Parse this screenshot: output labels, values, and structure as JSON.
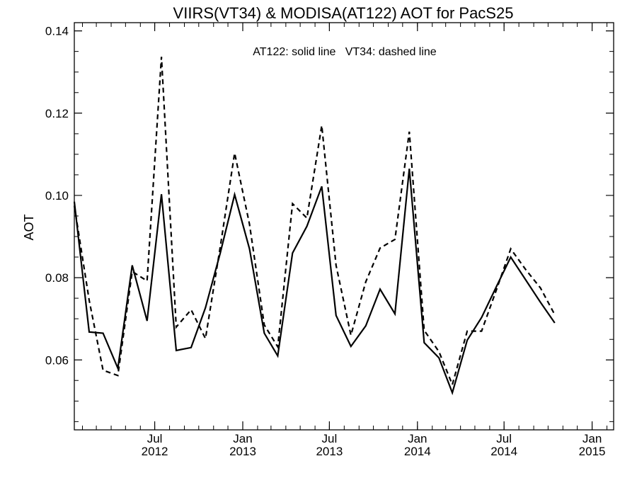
{
  "chart_data": {
    "type": "line",
    "title": "VIIRS(VT34) & MODISA(AT122)  AOT for PacS25",
    "annotation": "AT122: solid line   VT34: dashed line",
    "ylabel": "AOT",
    "xlabel": "",
    "ylim": [
      0.043,
      0.142
    ],
    "xlim": [
      "2012-01-15",
      "2015-02-15"
    ],
    "y_ticks": [
      {
        "value": 0.06,
        "label": "0.06"
      },
      {
        "value": 0.08,
        "label": "0.08"
      },
      {
        "value": 0.1,
        "label": "0.10"
      },
      {
        "value": 0.12,
        "label": "0.12"
      },
      {
        "value": 0.14,
        "label": "0.14"
      }
    ],
    "x_ticks": [
      {
        "date": "2012-07-01",
        "month": "Jul",
        "year": "2012"
      },
      {
        "date": "2013-01-01",
        "month": "Jan",
        "year": "2013"
      },
      {
        "date": "2013-07-01",
        "month": "Jul",
        "year": "2013"
      },
      {
        "date": "2014-01-01",
        "month": "Jan",
        "year": "2014"
      },
      {
        "date": "2014-07-01",
        "month": "Jul",
        "year": "2014"
      },
      {
        "date": "2015-01-01",
        "month": "Jan",
        "year": "2015"
      }
    ],
    "grid": false,
    "series": [
      {
        "name": "AT122",
        "style": "solid",
        "color": "#000000",
        "points": [
          [
            "2012-01-15",
            0.0985
          ],
          [
            "2012-02-15",
            0.0668
          ],
          [
            "2012-03-15",
            0.0665
          ],
          [
            "2012-04-15",
            0.058
          ],
          [
            "2012-05-15",
            0.083
          ],
          [
            "2012-06-15",
            0.0695
          ],
          [
            "2012-07-15",
            0.1003
          ],
          [
            "2012-08-15",
            0.0623
          ],
          [
            "2012-09-15",
            0.063
          ],
          [
            "2012-10-15",
            0.0727
          ],
          [
            "2012-11-15",
            0.086
          ],
          [
            "2012-12-15",
            0.1002
          ],
          [
            "2013-01-15",
            0.087
          ],
          [
            "2013-02-15",
            0.0665
          ],
          [
            "2013-03-15",
            0.061
          ],
          [
            "2013-04-15",
            0.086
          ],
          [
            "2013-05-15",
            0.0925
          ],
          [
            "2013-06-15",
            0.1022
          ],
          [
            "2013-07-15",
            0.0708
          ],
          [
            "2013-08-15",
            0.0633
          ],
          [
            "2013-09-15",
            0.0683
          ],
          [
            "2013-10-15",
            0.0772
          ],
          [
            "2013-11-15",
            0.0712
          ],
          [
            "2013-12-15",
            0.1065
          ],
          [
            "2014-01-15",
            0.0642
          ],
          [
            "2014-02-15",
            0.0605
          ],
          [
            "2014-03-15",
            0.052
          ],
          [
            "2014-04-15",
            0.0648
          ],
          [
            "2014-05-15",
            0.0703
          ],
          [
            "2014-06-15",
            0.0778
          ],
          [
            "2014-07-15",
            0.085
          ],
          [
            "2014-08-15",
            0.0795
          ],
          [
            "2014-09-15",
            0.074
          ],
          [
            "2014-10-15",
            0.069
          ]
        ]
      },
      {
        "name": "VT34",
        "style": "dashed",
        "color": "#000000",
        "points": [
          [
            "2012-01-15",
            0.0975
          ],
          [
            "2012-02-15",
            0.0745
          ],
          [
            "2012-03-15",
            0.0575
          ],
          [
            "2012-04-15",
            0.0562
          ],
          [
            "2012-05-15",
            0.0815
          ],
          [
            "2012-06-15",
            0.0792
          ],
          [
            "2012-07-15",
            0.1337
          ],
          [
            "2012-08-15",
            0.068
          ],
          [
            "2012-09-15",
            0.0722
          ],
          [
            "2012-10-15",
            0.0652
          ],
          [
            "2012-11-15",
            0.0875
          ],
          [
            "2012-12-15",
            0.1103
          ],
          [
            "2013-01-15",
            0.093
          ],
          [
            "2013-02-15",
            0.0685
          ],
          [
            "2013-03-15",
            0.0632
          ],
          [
            "2013-04-15",
            0.098
          ],
          [
            "2013-05-15",
            0.0945
          ],
          [
            "2013-06-15",
            0.117
          ],
          [
            "2013-07-15",
            0.083
          ],
          [
            "2013-08-15",
            0.066
          ],
          [
            "2013-09-15",
            0.079
          ],
          [
            "2013-10-15",
            0.0872
          ],
          [
            "2013-11-15",
            0.0893
          ],
          [
            "2013-12-15",
            0.1155
          ],
          [
            "2014-01-15",
            0.0672
          ],
          [
            "2014-02-15",
            0.062
          ],
          [
            "2014-03-15",
            0.054
          ],
          [
            "2014-04-15",
            0.067
          ],
          [
            "2014-05-15",
            0.067
          ],
          [
            "2014-06-15",
            0.077
          ],
          [
            "2014-07-15",
            0.087
          ],
          [
            "2014-08-15",
            0.082
          ],
          [
            "2014-09-15",
            0.0775
          ],
          [
            "2014-10-15",
            0.071
          ]
        ]
      }
    ]
  }
}
